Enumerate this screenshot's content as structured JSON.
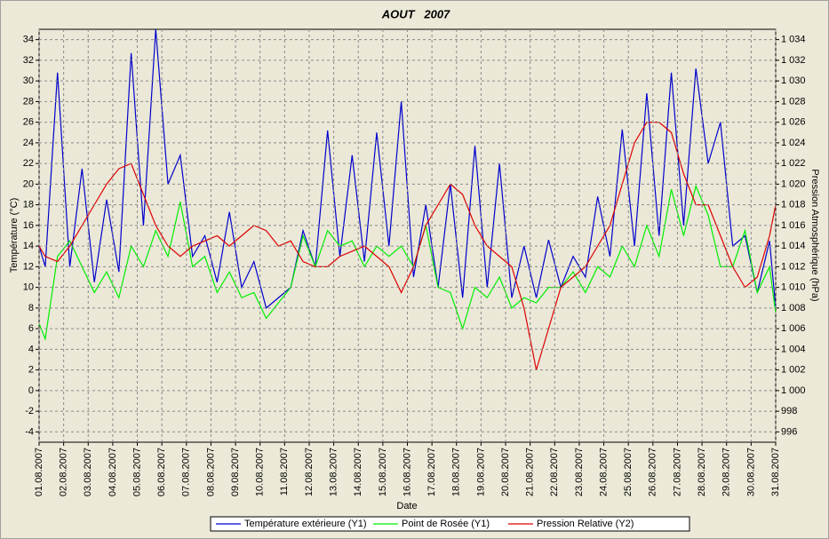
{
  "chart_data": {
    "type": "line",
    "title": "AOUT   2007",
    "x_label": "Date",
    "y_label": "Température (°C)",
    "y2_label": "Pression Atmosphérique (hPa)",
    "x": [
      1.0,
      1.25,
      1.75,
      2.25,
      2.75,
      3.25,
      3.75,
      4.25,
      4.75,
      5.25,
      5.75,
      6.25,
      6.75,
      7.25,
      7.75,
      8.25,
      8.75,
      9.25,
      9.75,
      10.25,
      10.75,
      11.25,
      11.75,
      12.25,
      12.75,
      13.25,
      13.75,
      14.25,
      14.75,
      15.25,
      15.75,
      16.25,
      16.75,
      17.25,
      17.75,
      18.25,
      18.75,
      19.25,
      19.75,
      20.25,
      20.75,
      21.25,
      21.75,
      22.25,
      22.75,
      23.25,
      23.75,
      24.25,
      24.75,
      25.25,
      25.75,
      26.25,
      26.75,
      27.25,
      27.75,
      28.25,
      28.75,
      29.25,
      29.75,
      30.25,
      30.75,
      31.0
    ],
    "xlim": [
      1,
      31
    ],
    "xticks": [
      {
        "value": 1,
        "label": "01.08.2007"
      },
      {
        "value": 2,
        "label": "02.08.2007"
      },
      {
        "value": 3,
        "label": "03.08.2007"
      },
      {
        "value": 4,
        "label": "04.08.2007"
      },
      {
        "value": 5,
        "label": "05.08.2007"
      },
      {
        "value": 6,
        "label": "06.08.2007"
      },
      {
        "value": 7,
        "label": "07.08.2007"
      },
      {
        "value": 8,
        "label": "08.08.2007"
      },
      {
        "value": 9,
        "label": "09.08.2007"
      },
      {
        "value": 10,
        "label": "10.08.2007"
      },
      {
        "value": 11,
        "label": "11.08.2007"
      },
      {
        "value": 12,
        "label": "12.08.2007"
      },
      {
        "value": 13,
        "label": "13.08.2007"
      },
      {
        "value": 14,
        "label": "14.08.2007"
      },
      {
        "value": 15,
        "label": "15.08.2007"
      },
      {
        "value": 16,
        "label": "16.08.2007"
      },
      {
        "value": 17,
        "label": "17.08.2007"
      },
      {
        "value": 18,
        "label": "18.08.2007"
      },
      {
        "value": 19,
        "label": "19.08.2007"
      },
      {
        "value": 20,
        "label": "20.08.2007"
      },
      {
        "value": 21,
        "label": "21.08.2007"
      },
      {
        "value": 22,
        "label": "22.08.2007"
      },
      {
        "value": 23,
        "label": "23.08.2007"
      },
      {
        "value": 24,
        "label": "24.08.2007"
      },
      {
        "value": 25,
        "label": "25.08.2007"
      },
      {
        "value": 26,
        "label": "26.08.2007"
      },
      {
        "value": 27,
        "label": "27.08.2007"
      },
      {
        "value": 28,
        "label": "28.08.2007"
      },
      {
        "value": 29,
        "label": "29.08.2007"
      },
      {
        "value": 30,
        "label": "30.08.2007"
      },
      {
        "value": 31,
        "label": "31.08.2007"
      }
    ],
    "ylim": [
      -5,
      35
    ],
    "yticks": [
      -4,
      -2,
      0,
      2,
      4,
      6,
      8,
      10,
      12,
      14,
      16,
      18,
      20,
      22,
      24,
      26,
      28,
      30,
      32,
      34
    ],
    "y2lim": [
      995,
      1035
    ],
    "y2ticks": [
      996,
      998,
      {
        "value": 1000,
        "label": "1 000"
      },
      {
        "value": 1002,
        "label": "1 002"
      },
      {
        "value": 1004,
        "label": "1 004"
      },
      {
        "value": 1006,
        "label": "1 006"
      },
      {
        "value": 1008,
        "label": "1 008"
      },
      {
        "value": 1010,
        "label": "1 010"
      },
      {
        "value": 1012,
        "label": "1 012"
      },
      {
        "value": 1014,
        "label": "1 014"
      },
      {
        "value": 1016,
        "label": "1 016"
      },
      {
        "value": 1018,
        "label": "1 018"
      },
      {
        "value": 1020,
        "label": "1 020"
      },
      {
        "value": 1022,
        "label": "1 022"
      },
      {
        "value": 1024,
        "label": "1 024"
      },
      {
        "value": 1026,
        "label": "1 026"
      },
      {
        "value": 1028,
        "label": "1 028"
      },
      {
        "value": 1030,
        "label": "1 030"
      },
      {
        "value": 1032,
        "label": "1 032"
      },
      {
        "value": 1034,
        "label": "1 034"
      }
    ],
    "grid": true,
    "legend": "bottom",
    "series": [
      {
        "name": "Température extérieure (Y1)",
        "color": "#0000cc",
        "values": [
          14,
          12,
          30.8,
          12,
          21.5,
          10.5,
          18.5,
          11.5,
          32.7,
          16,
          35,
          20,
          22.8,
          13,
          15,
          10.5,
          17.3,
          10,
          12.5,
          8,
          9,
          10,
          15.5,
          12,
          25.2,
          13,
          22.8,
          12.5,
          25,
          14,
          28,
          11,
          18,
          10,
          20,
          9,
          23.7,
          10,
          22,
          9,
          14,
          9,
          14.6,
          10,
          13,
          11,
          18.8,
          13,
          25.3,
          14,
          28.8,
          15,
          30.8,
          16,
          31.2,
          22,
          26,
          14,
          15,
          9.5,
          14.5,
          8
        ]
      },
      {
        "name": "Point de Rosée (Y1)",
        "color": "#00ee00",
        "values": [
          6.5,
          5,
          13,
          14.5,
          12,
          9.5,
          11.5,
          9,
          14,
          12,
          15.5,
          13,
          18.3,
          12,
          13,
          9.5,
          11.5,
          9,
          9.5,
          7,
          8.5,
          10,
          15,
          12,
          15.5,
          14,
          14.5,
          12,
          14,
          13,
          14,
          12,
          16,
          10,
          9.5,
          6,
          10,
          9,
          11,
          8,
          9,
          8.5,
          10,
          10,
          11.5,
          9.5,
          12,
          11,
          14,
          12,
          16,
          13,
          19.5,
          15,
          19.8,
          17,
          12,
          12,
          15.5,
          9.5,
          12,
          7.5
        ]
      },
      {
        "name": "Pression Relative (Y2)",
        "color": "#dd0000",
        "axis": "y2",
        "values": [
          1014,
          1013,
          1012.5,
          1014,
          1016,
          1018,
          1020,
          1021.5,
          1022,
          1019,
          1016,
          1014,
          1013,
          1014,
          1014.5,
          1015,
          1014,
          1015,
          1016,
          1015.5,
          1014,
          1014.5,
          1012.5,
          1012,
          1012,
          1013,
          1013.5,
          1014,
          1013,
          1012,
          1009.5,
          1012,
          1016,
          1018,
          1020,
          1019,
          1016,
          1014,
          1013,
          1012,
          1008,
          1002,
          1006,
          1010,
          1011,
          1012,
          1014,
          1016,
          1020,
          1024,
          1026,
          1026,
          1025,
          1021,
          1018,
          1018,
          1015,
          1012,
          1010,
          1011,
          1015,
          1018
        ]
      }
    ]
  }
}
